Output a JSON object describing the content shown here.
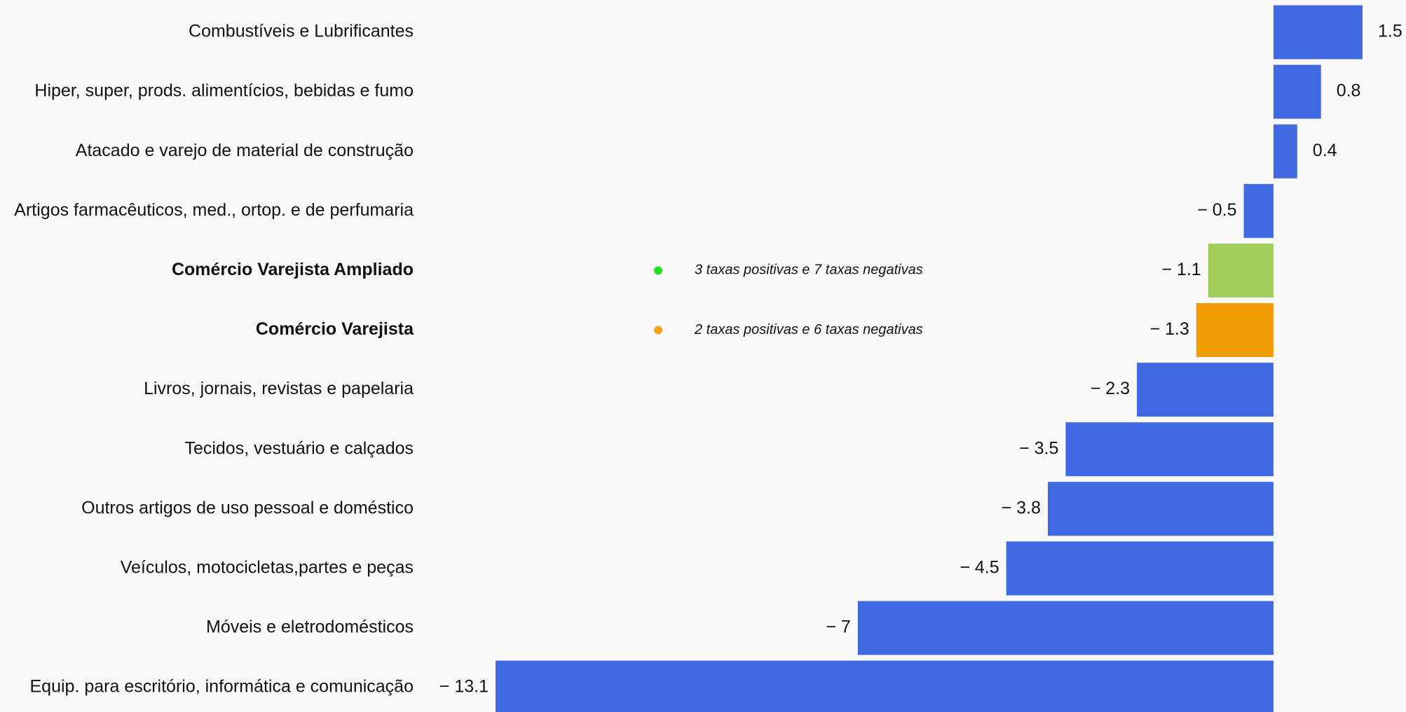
{
  "chart_data": {
    "type": "barh",
    "categories": [
      "Combustíveis e Lubrificantes",
      "Hiper, super, prods.  alimentícios, bebidas e fumo",
      "Atacado e varejo de material de construção",
      "Artigos farmacêuticos, med., ortop. e de perfumaria",
      "Comércio Varejista Ampliado",
      "Comércio Varejista",
      "Livros, jornais, revistas e papelaria",
      "Tecidos, vestuário e calçados",
      "Outros artigos de uso pessoal e doméstico",
      "Veículos, motocicletas,partes e peças",
      "Móveis e eletrodomésticos",
      "Equip. para escritório, informática e comunicação"
    ],
    "values": [
      1.5,
      0.8,
      0.4,
      -0.5,
      -1.1,
      -1.3,
      -2.3,
      -3.5,
      -3.8,
      -4.5,
      -7,
      -13.1
    ],
    "value_labels": [
      "1.5",
      "0.8",
      "0.4",
      "− 0.5",
      "− 1.1",
      "− 1.3",
      "− 2.3",
      "− 3.5",
      "− 3.8",
      "− 4.5",
      "− 7",
      "− 13.1"
    ],
    "colors": [
      "#4169e1",
      "#4169e1",
      "#4169e1",
      "#4169e1",
      "#a1cf5e",
      "#f19c00",
      "#4169e1",
      "#4169e1",
      "#4169e1",
      "#4169e1",
      "#4169e1",
      "#4169e1"
    ],
    "bold_categories": [
      "Comércio Varejista Ampliado",
      "Comércio Varejista"
    ],
    "xlim": [
      -13.1,
      1.5
    ],
    "annotations": [
      {
        "category": "Comércio Varejista Ampliado",
        "text": "3 taxas positivas e 7 taxas negativas",
        "color": "#22e022"
      },
      {
        "category": "Comércio Varejista",
        "text": "2 taxas positivas e 6 taxas negativas",
        "color": "#f7a21b"
      }
    ]
  }
}
